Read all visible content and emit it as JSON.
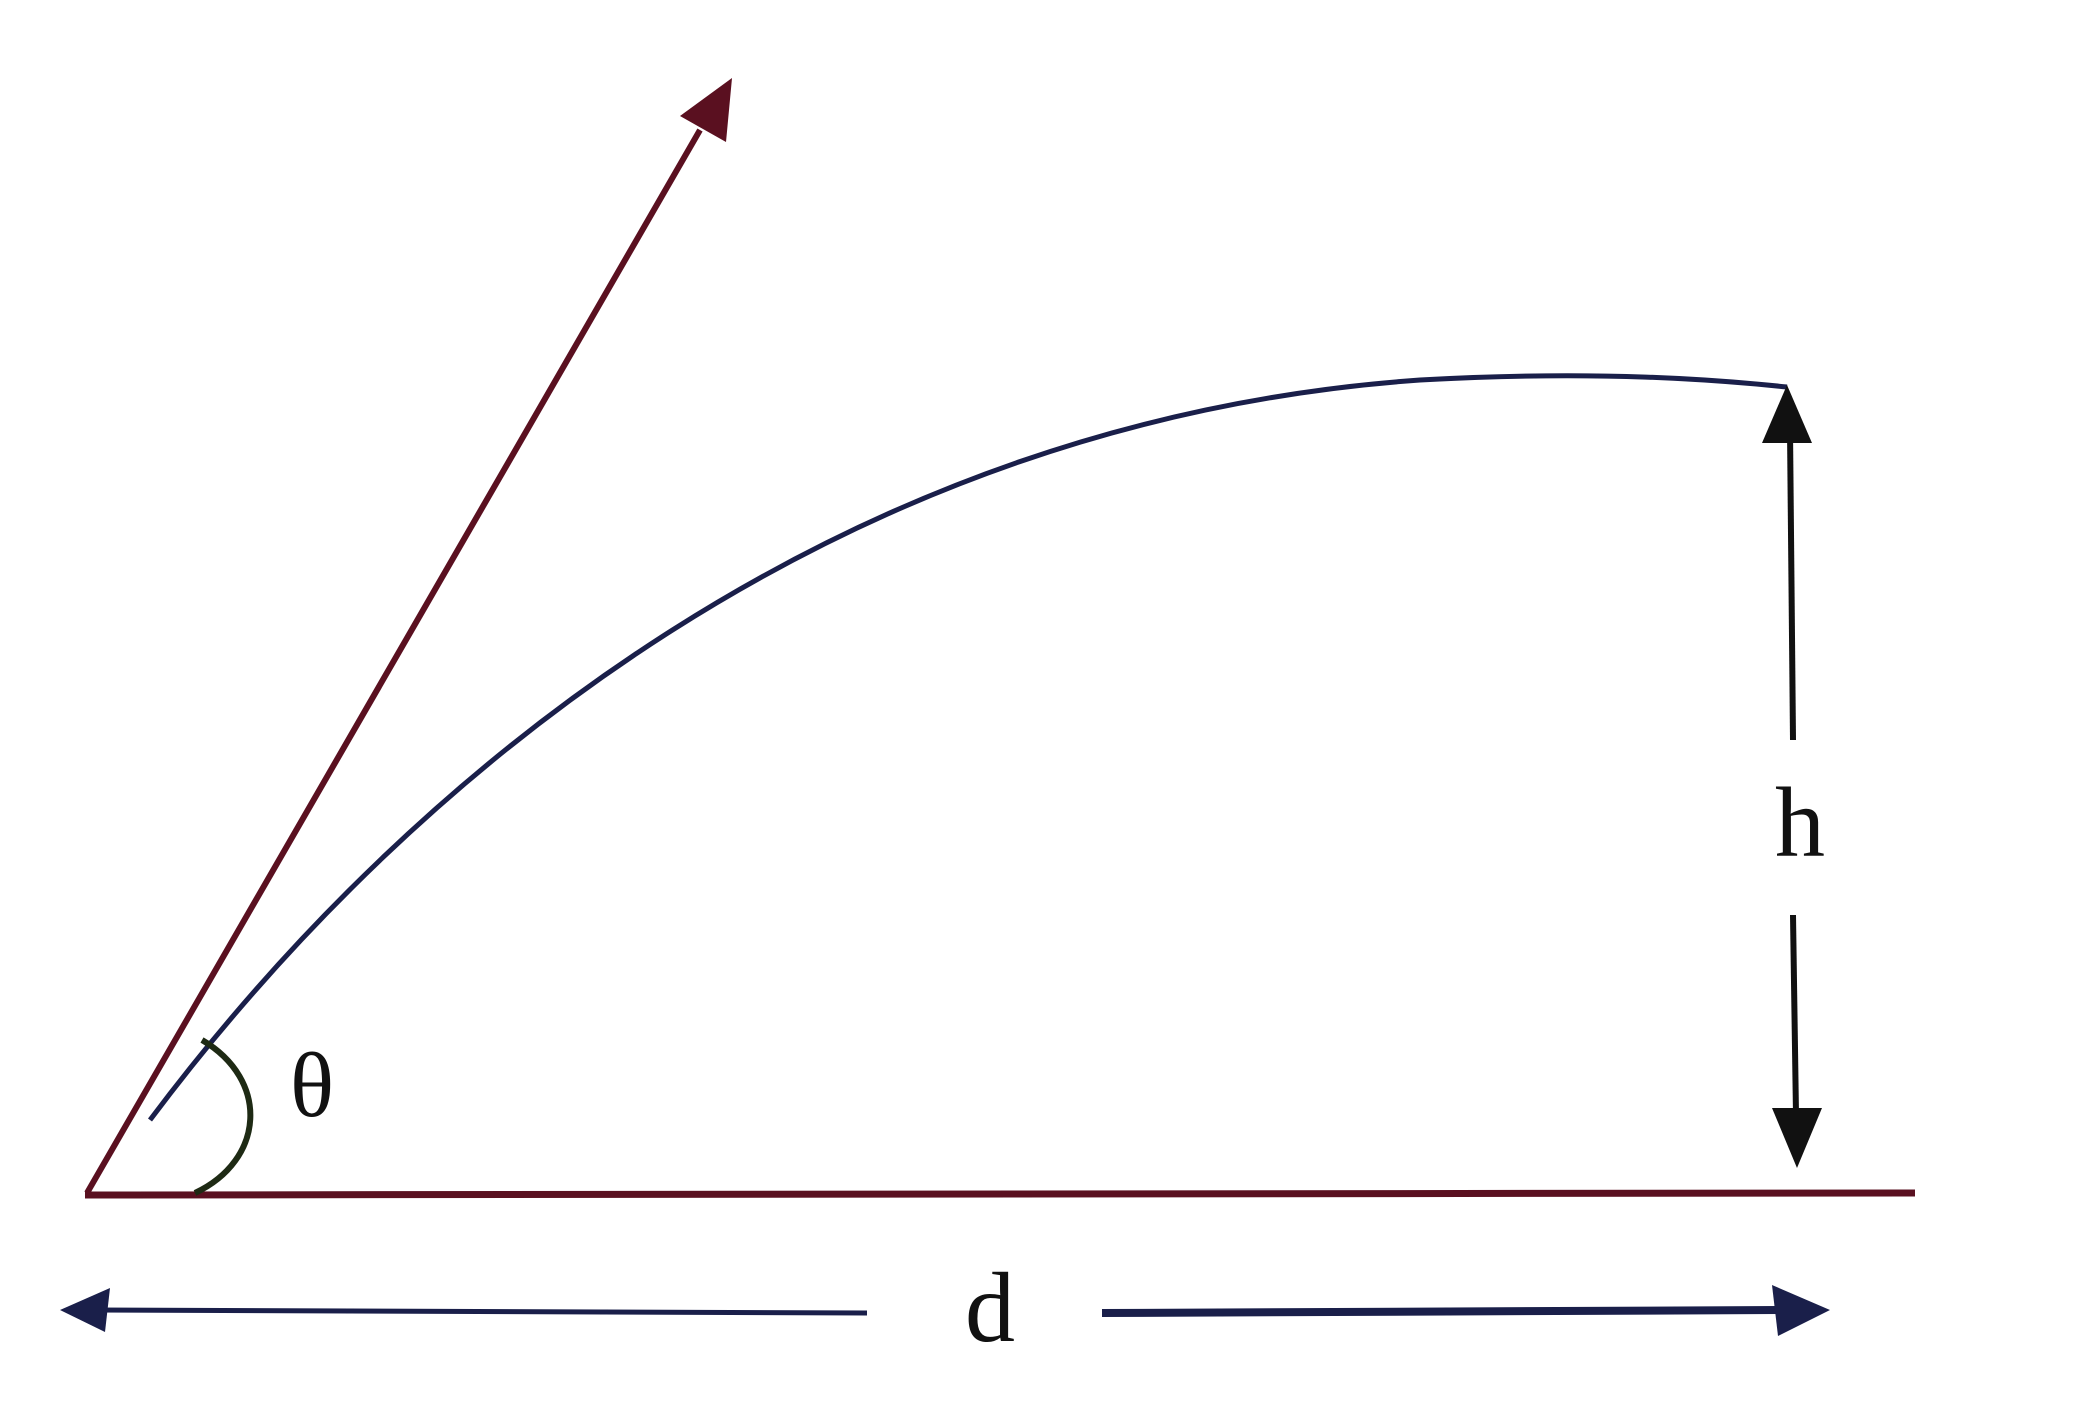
{
  "labels": {
    "angle": "θ",
    "height": "h",
    "distance": "d"
  }
}
